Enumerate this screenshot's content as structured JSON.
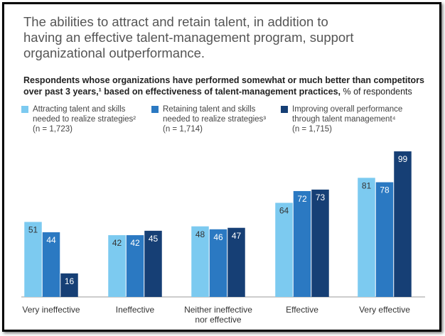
{
  "chart_data": {
    "type": "bar",
    "title": "The abilities to attract and retain talent, in addition to having an effective talent-management program, support organizational outperformance.",
    "subtitle": "Respondents whose organizations have performed somewhat or much better than competitors over past 3 years,¹ based on effectiveness of talent-management practices,",
    "unit": "% of respondents",
    "categories": [
      "Very ineffective",
      "Ineffective",
      "Neither ineffective nor effective",
      "Effective",
      "Very effective"
    ],
    "series": [
      {
        "name": "Attracting talent and skills needed to realize strategies²",
        "sample": "(n = 1,723)",
        "color": "#7ccaf0",
        "values": [
          51,
          42,
          48,
          64,
          81
        ]
      },
      {
        "name": "Retaining talent and skills needed to realize strategies³",
        "sample": "(n = 1,714)",
        "color": "#2b79c2",
        "values": [
          44,
          42,
          46,
          72,
          78
        ]
      },
      {
        "name": "Improving overall performance through talent management⁴",
        "sample": "(n = 1,715)",
        "color": "#163f75",
        "values": [
          16,
          45,
          47,
          73,
          99
        ]
      }
    ]
  }
}
